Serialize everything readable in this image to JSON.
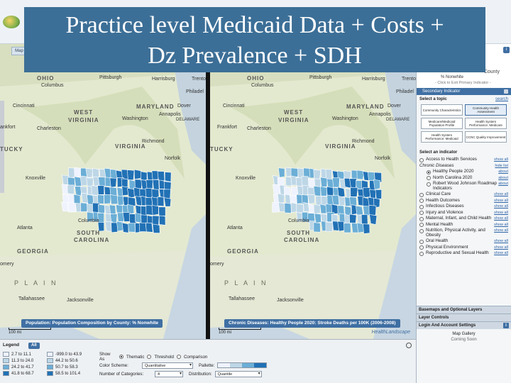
{
  "slide": {
    "title_line1": "Practice level Medicaid Data + Costs +",
    "title_line2": "Dz Prevalence + SDH"
  },
  "map_tab_label": "Map",
  "left_map": {
    "caption": "Population: Population Composition by County: % Nonwhite",
    "scale_label": "100 mi",
    "places": [
      "OHIO",
      "Columbus",
      "Pittsburgh",
      "Harrisburg",
      "Trento",
      "Philadel",
      "Cincinnati",
      "WEST",
      "VIRGINIA",
      "Charleston",
      "Washington",
      "Annapolis",
      "MARYLAND",
      "Dover",
      "DELAWARE",
      "ankfort",
      "Knoxville",
      "Richmond",
      "VIRGINIA",
      "Norfolk",
      "TUCKY",
      "Columbia",
      "SOUTH",
      "CAROLINA",
      "Atlanta",
      "GEORGIA",
      "P L A I N",
      "Tallahassee",
      "Jacksonville",
      "omery"
    ]
  },
  "right_map": {
    "caption": "Chronic Diseases: Healthy People 2020: Stroke Deaths per 100K (2006-2008)",
    "scale_label": "100 mi",
    "brand": "HealthLandscape",
    "places": [
      "OHIO",
      "Columbus",
      "Pittsburgh",
      "Harrisburg",
      "Trento",
      "Philadel",
      "Cincinnati",
      "WEST",
      "VIRGINIA",
      "Charleston",
      "Washington",
      "Annapolis",
      "MARYLAND",
      "Dover",
      "DELAWARE",
      "Frankfort",
      "Knoxville",
      "Richmond",
      "VIRGINIA",
      "Norfolk",
      "TUCKY",
      "Columbia",
      "SOUTH",
      "CAROLINA",
      "Atlanta",
      "GEORGIA",
      "P L A I N",
      "Tallahassee",
      "Jacksonville",
      "omery"
    ]
  },
  "panel": {
    "primary_indicator": "% Nonwhite",
    "exit_link": "- Click to Exit Primary Indicator -",
    "county_label": "County",
    "secondary_header": "Secondary Indicator",
    "select_topic": "Select a topic",
    "search_link": "search",
    "topics": [
      {
        "label": "Community Characteristics",
        "active": false
      },
      {
        "label": "Community Health Assessment",
        "active": true
      },
      {
        "label": "Medicare/Medicaid Population Profile",
        "active": false
      },
      {
        "label": "Health System Performance: Medicare",
        "active": false
      },
      {
        "label": "Health System Performance: Medicaid",
        "active": false
      },
      {
        "label": "CCNC Quality Improvement",
        "active": false
      }
    ],
    "select_indicator": "Select an indicator",
    "indicators": [
      {
        "label": "Access to Health Services",
        "link": "show all",
        "type": "radio",
        "on": false
      },
      {
        "label": "Chronic Diseases",
        "link": "hide list",
        "type": "category"
      },
      {
        "label": "Healthy People 2020",
        "link": "about",
        "type": "sub",
        "on": true
      },
      {
        "label": "North Carolina 2020",
        "link": "about",
        "type": "sub",
        "on": false
      },
      {
        "label": "Robert Wood Johnson Roadmap Indicators",
        "link": "about",
        "type": "sub",
        "on": false
      },
      {
        "label": "Clinical Care",
        "link": "show all",
        "type": "radio",
        "on": false
      },
      {
        "label": "Health Outcomes",
        "link": "show all",
        "type": "radio",
        "on": false
      },
      {
        "label": "Infectious Diseases",
        "link": "show all",
        "type": "radio",
        "on": false
      },
      {
        "label": "Injury and Violence",
        "link": "show all",
        "type": "radio",
        "on": false
      },
      {
        "label": "Maternal, Infant, and Child Health",
        "link": "show all",
        "type": "radio",
        "on": false
      },
      {
        "label": "Mental Health",
        "link": "show all",
        "type": "radio",
        "on": false
      },
      {
        "label": "Nutrition, Physical Activity, and Obesity",
        "link": "show all",
        "type": "radio",
        "on": false
      },
      {
        "label": "Oral Health",
        "link": "show all",
        "type": "radio",
        "on": false
      },
      {
        "label": "Physical Environment",
        "link": "show all",
        "type": "radio",
        "on": false
      },
      {
        "label": "Reproductive and Sexual Health",
        "link": "show all",
        "type": "radio",
        "on": false
      }
    ],
    "basemaps": "Basemaps and Optional Layers",
    "layer_controls": "Layer Controls",
    "login": "Login And Account Settings",
    "gallery_title": "Map Gallery",
    "gallery_sub": "Coming Soon"
  },
  "legend": {
    "title": "Legend",
    "all_button": "All",
    "left_ranges": [
      "2.7 to 11.1",
      "11.3 to 24.0",
      "24.2 to 41.7",
      "41.8 to 68.7"
    ],
    "right_ranges": [
      "-999.0 to 43.9",
      "44.2 to 50.6",
      "50.7 to 58.3",
      "58.5 to 101.4"
    ],
    "colors": [
      "#eff3ff",
      "#bdd7e7",
      "#6baed6",
      "#2171b5"
    ],
    "show_as_label": "Show As",
    "show_as_options": [
      "Thematic",
      "Threshold",
      "Comparison"
    ],
    "color_scheme_label": "Color Scheme:",
    "color_scheme_value": "Quantitative",
    "palette_label": "Pallette:",
    "num_categories_label": "Number of Categories:",
    "num_categories_value": "4",
    "distribution_label": "Distribution:",
    "distribution_value": "Quantile"
  }
}
